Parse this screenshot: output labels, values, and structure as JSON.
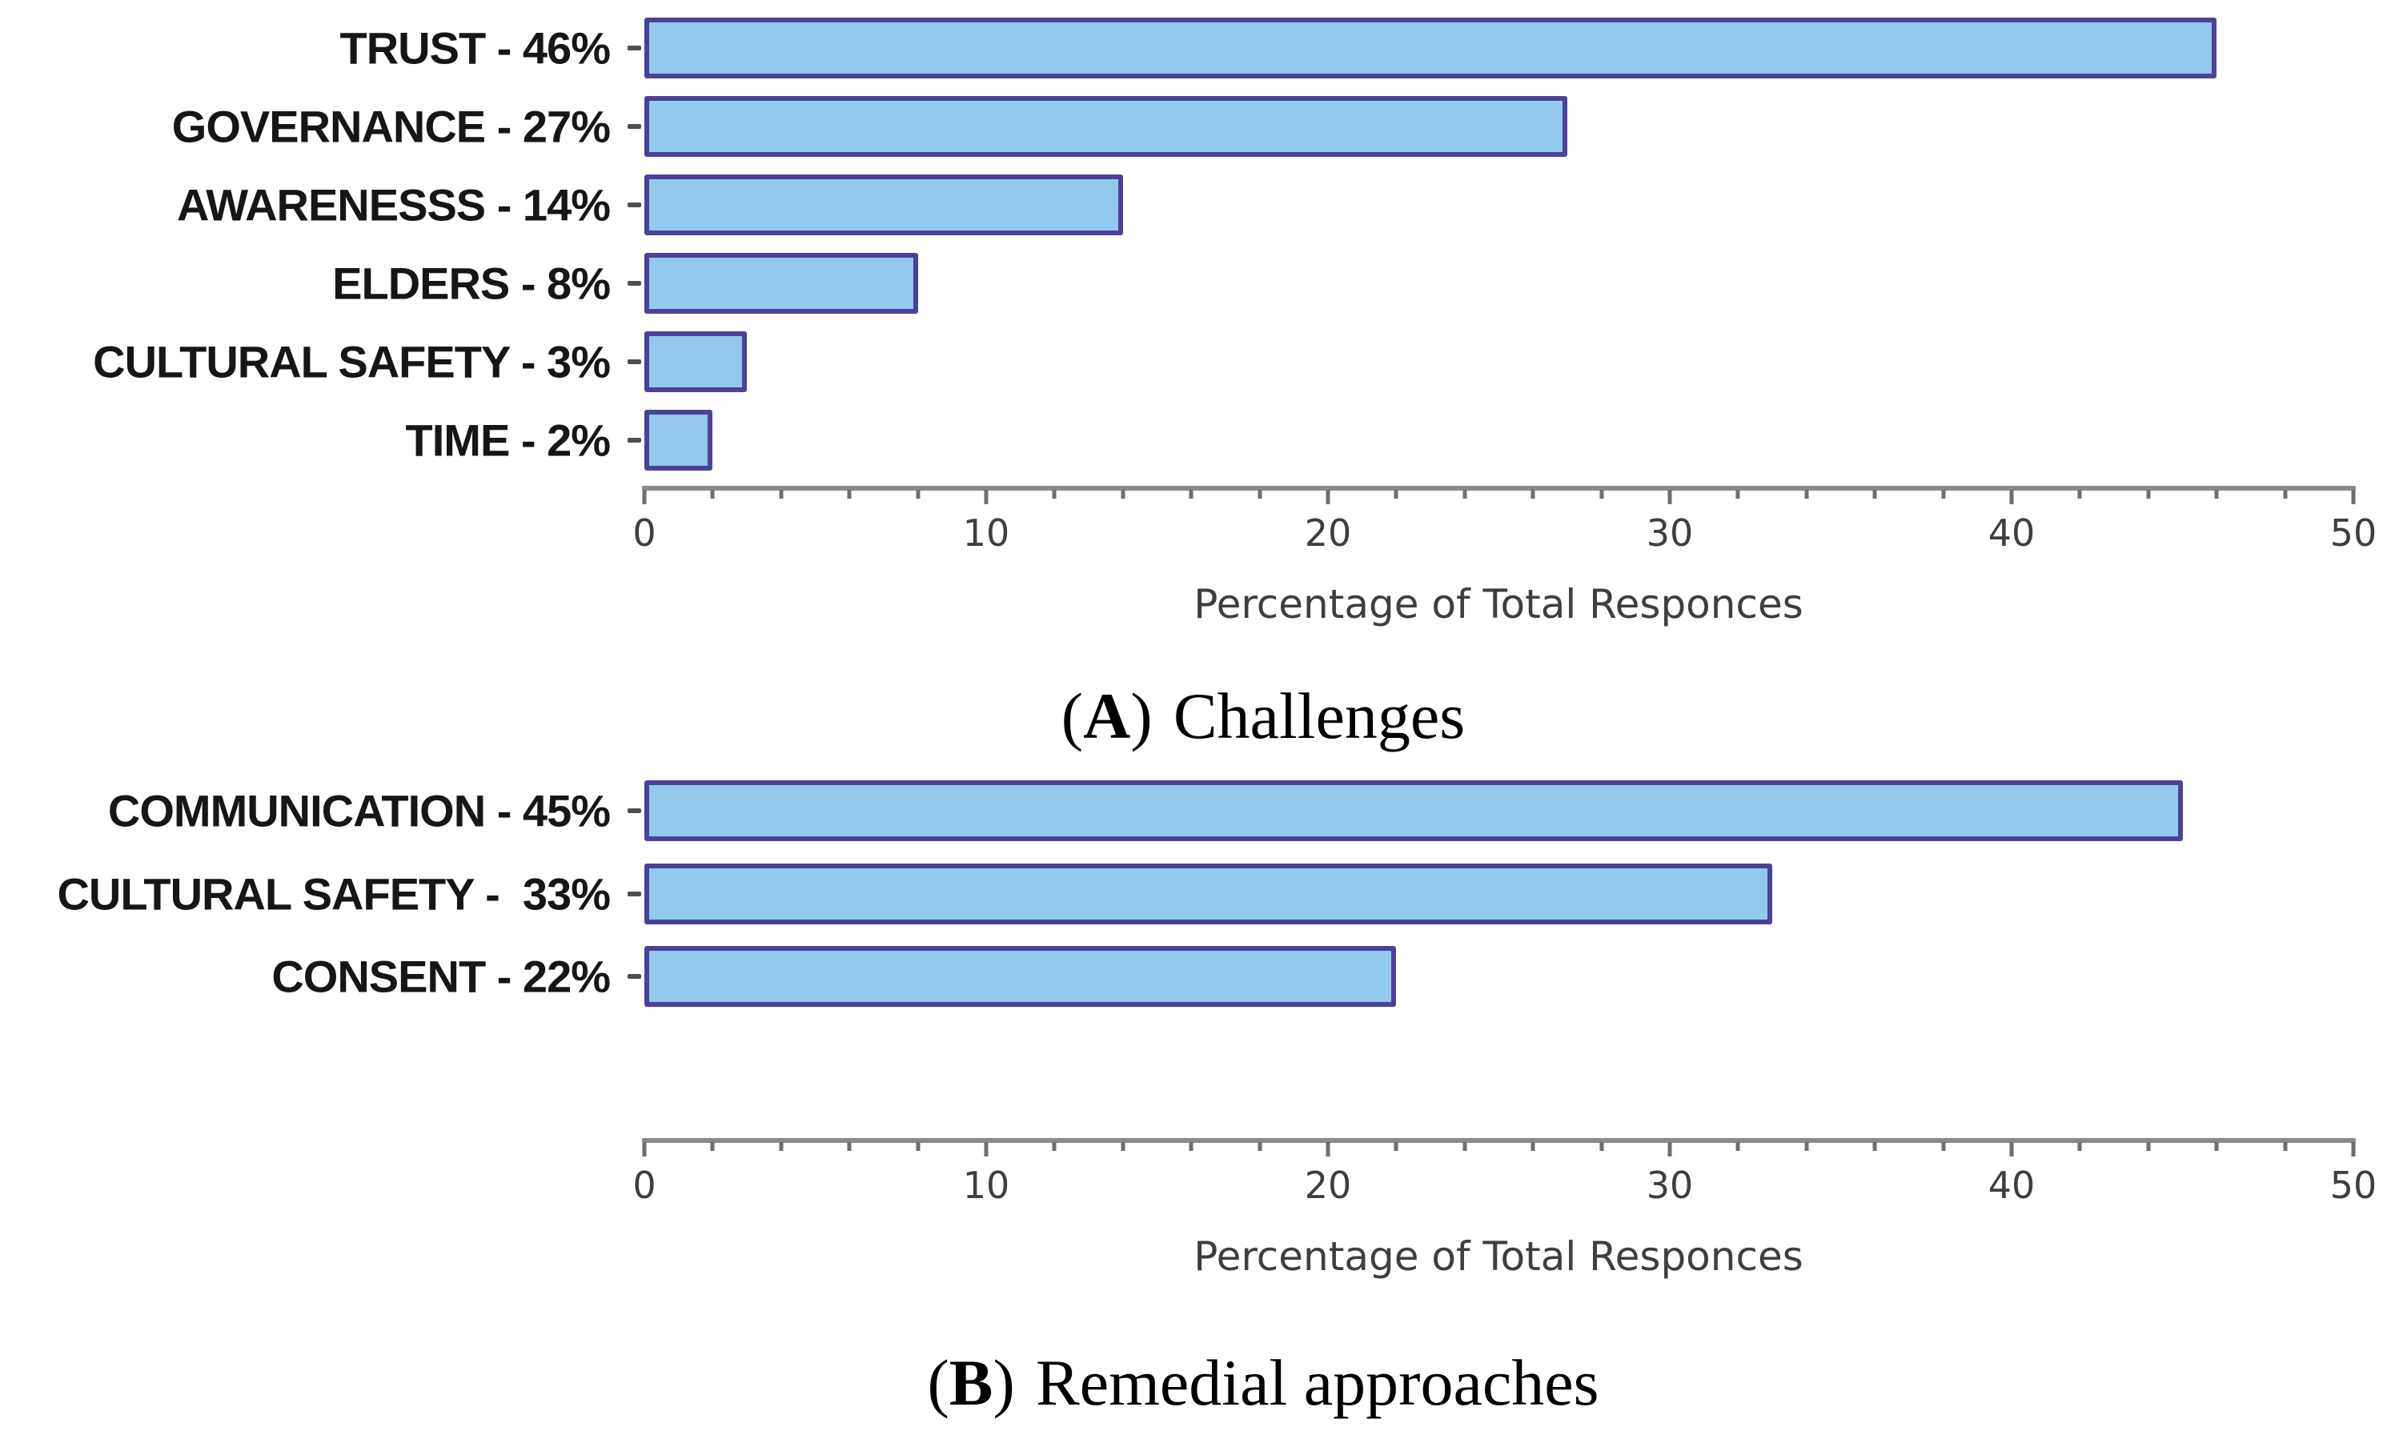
{
  "style": {
    "bar_fill": "#92C9ED",
    "bar_edge": "#4C4199",
    "axis_color": "#8a8a8a",
    "tick_color": "#6e6e6e",
    "background": "#ffffff"
  },
  "chart_data": [
    {
      "type": "bar",
      "orientation": "horizontal",
      "categories": [
        "TRUST - 46%",
        "GOVERNANCE - 27%",
        "AWARENESSS - 14%",
        "ELDERS - 8%",
        "CULTURAL SAFETY - 3%",
        "TIME - 2%"
      ],
      "values": [
        46,
        27,
        14,
        8,
        3,
        2
      ],
      "xlabel": "Percentage of Total Responces",
      "xlim": [
        0,
        50
      ],
      "xticks": [
        0,
        10,
        20,
        30,
        40,
        50
      ],
      "minor_tick_step": 2,
      "grid": "off",
      "caption_open": "(",
      "caption_letter": "A",
      "caption_close": ")",
      "caption_text": "Challenges"
    },
    {
      "type": "bar",
      "orientation": "horizontal",
      "categories": [
        "COMMUNICATION - 45%",
        "CULTURAL SAFETY -  33%",
        "CONSENT - 22%"
      ],
      "values": [
        45,
        33,
        22
      ],
      "xlabel": "Percentage of Total Responces",
      "xlim": [
        0,
        50
      ],
      "xticks": [
        0,
        10,
        20,
        30,
        40,
        50
      ],
      "minor_tick_step": 2,
      "grid": "off",
      "caption_open": "(",
      "caption_letter": "B",
      "caption_close": ")",
      "caption_text": "Remedial approaches"
    }
  ]
}
